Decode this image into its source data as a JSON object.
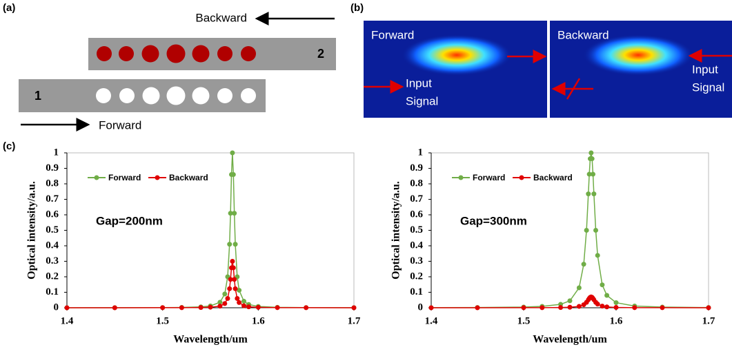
{
  "panel_labels": [
    "(a)",
    "(b)",
    "(c)"
  ],
  "diagram_a": {
    "backward": "Backward",
    "forward": "Forward",
    "port_top": "2",
    "port_bottom": "1"
  },
  "diagram_b": {
    "left_title": "Forward",
    "right_title": "Backward",
    "input_left": [
      "Input",
      "Signal"
    ],
    "input_right": [
      "Input",
      "Signal"
    ]
  },
  "chart_data": [
    {
      "type": "line",
      "annotation": "Gap=200nm",
      "xlabel": "Wavelength/um",
      "ylabel": "Optical intensity/a.u.",
      "xlim": [
        1.4,
        1.7
      ],
      "ylim": [
        0,
        1
      ],
      "xticks": [
        1.4,
        1.5,
        1.6,
        1.7
      ],
      "yticks": [
        0,
        0.1,
        0.2,
        0.3,
        0.4,
        0.5,
        0.6,
        0.7,
        0.8,
        0.9,
        1
      ],
      "legend": "top-left",
      "x": [
        1.4,
        1.45,
        1.5,
        1.52,
        1.54,
        1.55,
        1.56,
        1.565,
        1.568,
        1.57,
        1.571,
        1.572,
        1.573,
        1.574,
        1.575,
        1.576,
        1.578,
        1.58,
        1.585,
        1.59,
        1.6,
        1.62,
        1.65,
        1.7
      ],
      "series": [
        {
          "name": "Forward",
          "color": "#70ad47",
          "values": [
            0.0002,
            0.0004,
            0.0012,
            0.0022,
            0.0057,
            0.0117,
            0.0357,
            0.089,
            0.2,
            0.41,
            0.61,
            0.86,
            1,
            0.86,
            0.61,
            0.41,
            0.2,
            0.113,
            0.042,
            0.021,
            0.0085,
            0.0028,
            0.0011,
            0.0004
          ]
        },
        {
          "name": "Backward",
          "color": "#e00000",
          "values": [
            0.0001,
            0.0001,
            0.0004,
            0.0007,
            0.0017,
            0.0035,
            0.0107,
            0.027,
            0.06,
            0.123,
            0.183,
            0.258,
            0.3,
            0.258,
            0.183,
            0.123,
            0.06,
            0.034,
            0.013,
            0.006,
            0.0026,
            0.0008,
            0.0003,
            0.0001
          ]
        }
      ]
    },
    {
      "type": "line",
      "annotation": "Gap=300nm",
      "xlabel": "Wavelength/um",
      "ylabel": "Optical intensity/a.u.",
      "xlim": [
        1.4,
        1.7
      ],
      "ylim": [
        0,
        1
      ],
      "xticks": [
        1.4,
        1.5,
        1.6,
        1.7
      ],
      "yticks": [
        0,
        0.1,
        0.2,
        0.3,
        0.4,
        0.5,
        0.6,
        0.7,
        0.8,
        0.9,
        1
      ],
      "legend": "top-left",
      "x": [
        1.4,
        1.45,
        1.5,
        1.52,
        1.54,
        1.55,
        1.56,
        1.565,
        1.568,
        1.57,
        1.571,
        1.572,
        1.573,
        1.574,
        1.575,
        1.576,
        1.578,
        1.58,
        1.585,
        1.59,
        1.6,
        1.62,
        1.65,
        1.7
      ],
      "series": [
        {
          "name": "Forward",
          "color": "#70ad47",
          "values": [
            0.0008,
            0.0017,
            0.0047,
            0.0088,
            0.022,
            0.045,
            0.129,
            0.281,
            0.5,
            0.735,
            0.862,
            0.962,
            1,
            0.962,
            0.862,
            0.735,
            0.5,
            0.338,
            0.148,
            0.08,
            0.033,
            0.011,
            0.0042,
            0.0015
          ]
        },
        {
          "name": "Backward",
          "color": "#e00000",
          "values": [
            0.0001,
            0.0001,
            0.0003,
            0.0006,
            0.0015,
            0.0032,
            0.009,
            0.0197,
            0.035,
            0.0515,
            0.0603,
            0.0673,
            0.07,
            0.0673,
            0.0603,
            0.0515,
            0.035,
            0.0237,
            0.0104,
            0.0056,
            0.0023,
            0.0008,
            0.0003,
            0.0001
          ]
        }
      ]
    }
  ]
}
